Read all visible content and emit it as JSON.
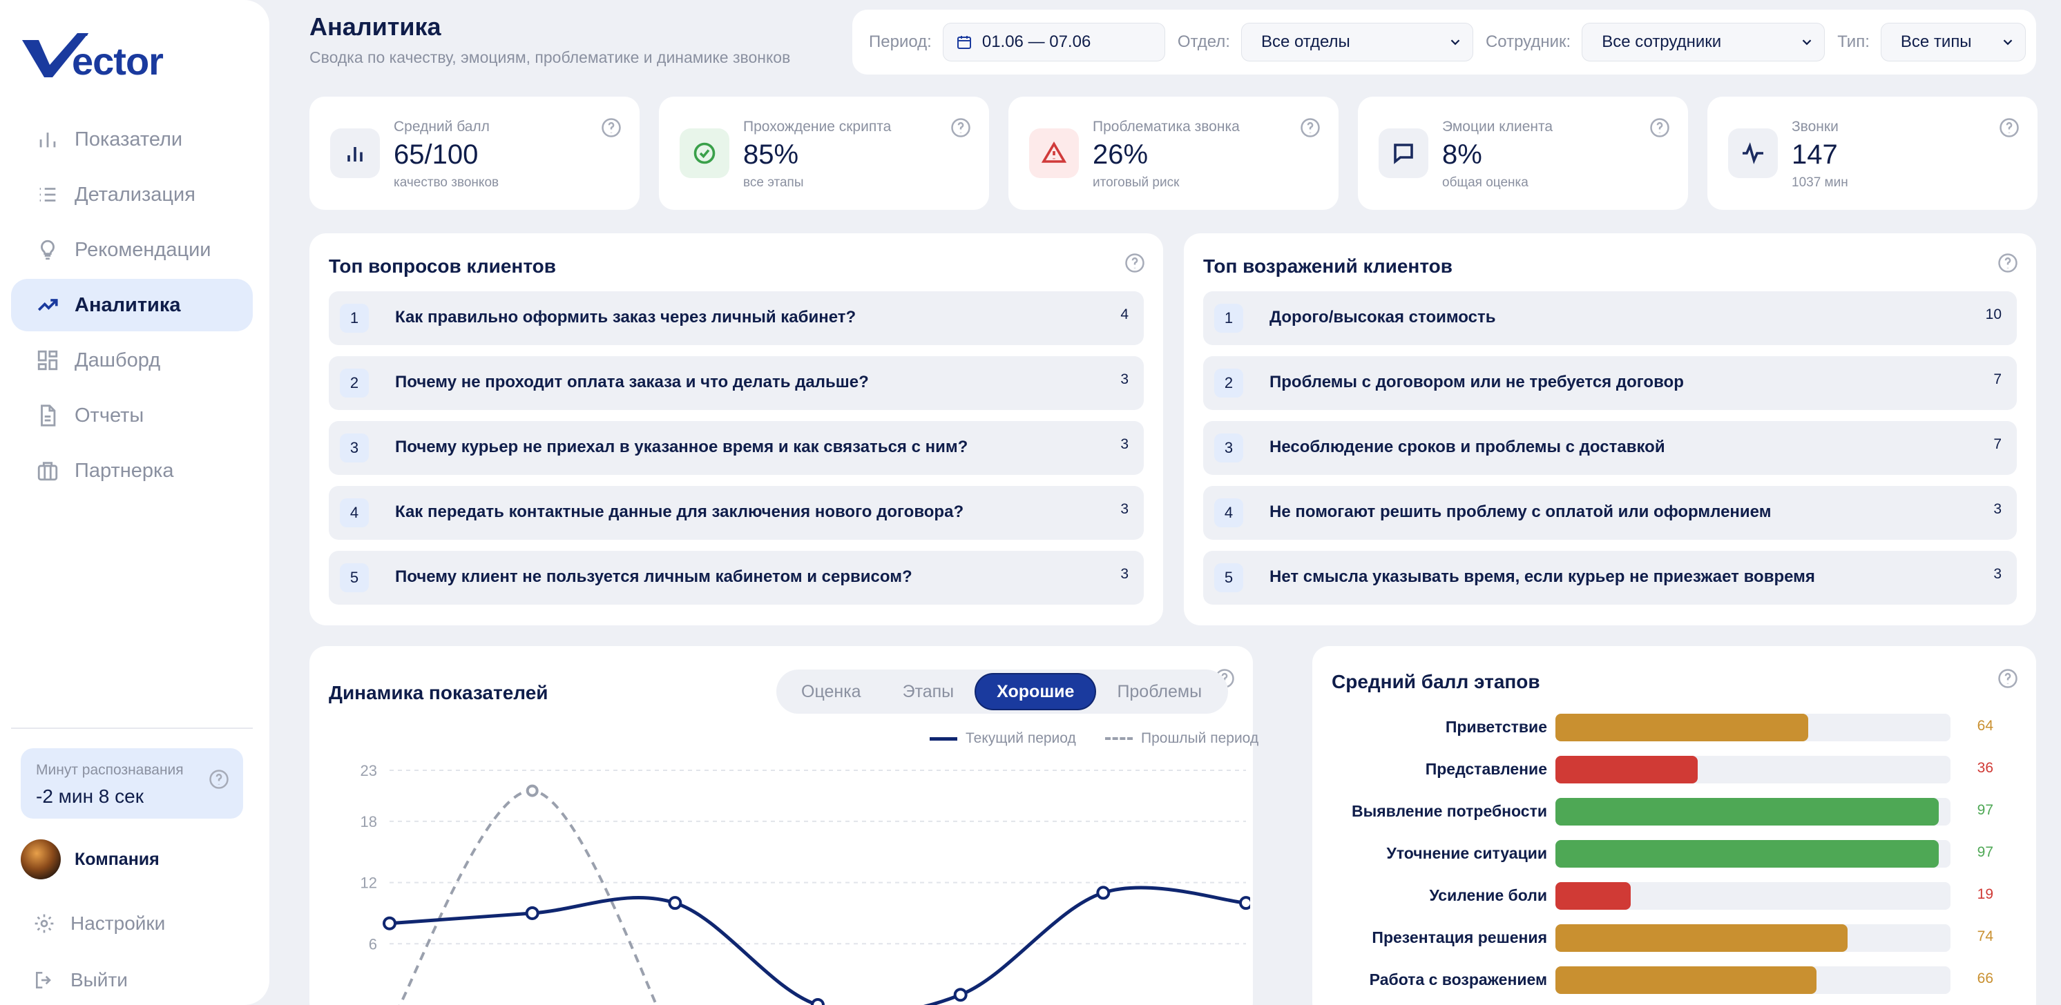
{
  "brand": {
    "logo_text": "ector",
    "accent": "#1a3a9e"
  },
  "sidebar": {
    "items": [
      {
        "label": "Показатели",
        "icon": "bar-chart-icon",
        "active": false
      },
      {
        "label": "Детализация",
        "icon": "list-icon",
        "active": false
      },
      {
        "label": "Рекомендации",
        "icon": "lightbulb-icon",
        "active": false
      },
      {
        "label": "Аналитика",
        "icon": "trending-up-icon",
        "active": true
      },
      {
        "label": "Дашборд",
        "icon": "dashboard-icon",
        "active": false
      },
      {
        "label": "Отчеты",
        "icon": "document-icon",
        "active": false
      },
      {
        "label": "Партнерка",
        "icon": "briefcase-icon",
        "active": false
      }
    ],
    "minutes": {
      "label": "Минут распознавания",
      "value": "-2 мин 8 сек"
    },
    "company": "Компания",
    "settings": "Настройки",
    "logout": "Выйти"
  },
  "header": {
    "title": "Аналитика",
    "subtitle": "Сводка по качеству, эмоциям, проблематике и динамике звонков"
  },
  "filters": {
    "period_label": "Период:",
    "period_value": "01.06 — 07.06",
    "dept_label": "Отдел:",
    "dept_value": "Все отделы",
    "employee_label": "Сотрудник:",
    "employee_value": "Все сотрудники",
    "type_label": "Тип:",
    "type_value": "Все типы"
  },
  "kpis": [
    {
      "label": "Средний балл",
      "value": "65/100",
      "sub": "качество звонков",
      "icon": "bar-chart-icon",
      "bg": "#eef0f5",
      "color": "#1a2a5e"
    },
    {
      "label": "Прохождение скрипта",
      "value": "85%",
      "sub": "все этапы",
      "icon": "check-circle-icon",
      "bg": "#e8f5ea",
      "color": "#3aa04a"
    },
    {
      "label": "Проблематика звонка",
      "value": "26%",
      "sub": "итоговый риск",
      "icon": "warning-icon",
      "bg": "#fdeaea",
      "color": "#d03a3a"
    },
    {
      "label": "Эмоции клиента",
      "value": "8%",
      "sub": "общая оценка",
      "icon": "message-icon",
      "bg": "#eef0f5",
      "color": "#1a2a5e"
    },
    {
      "label": "Звонки",
      "value": "147",
      "sub": "1037 мин",
      "icon": "activity-icon",
      "bg": "#eef0f5",
      "color": "#1a2a5e"
    }
  ],
  "questions": {
    "title": "Топ вопросов клиентов",
    "items": [
      {
        "num": "1",
        "text": "Как правильно оформить заказ через личный кабинет?",
        "count": "4"
      },
      {
        "num": "2",
        "text": "Почему не проходит оплата заказа и что делать дальше?",
        "count": "3"
      },
      {
        "num": "3",
        "text": "Почему курьер не приехал в указанное время и как связаться с ним?",
        "count": "3"
      },
      {
        "num": "4",
        "text": "Как передать контактные данные для заключения нового договора?",
        "count": "3"
      },
      {
        "num": "5",
        "text": "Почему клиент не пользуется личным кабинетом и сервисом?",
        "count": "3"
      }
    ]
  },
  "objections": {
    "title": "Топ возражений клиентов",
    "items": [
      {
        "num": "1",
        "text": "Дорого/высокая стоимость",
        "count": "10"
      },
      {
        "num": "2",
        "text": "Проблемы с договором или не требуется договор",
        "count": "7"
      },
      {
        "num": "3",
        "text": "Несоблюдение сроков и проблемы с доставкой",
        "count": "7"
      },
      {
        "num": "4",
        "text": "Не помогают решить проблему с оплатой или оформлением",
        "count": "3"
      },
      {
        "num": "5",
        "text": "Нет смысла указывать время, если курьер не приезжает вовремя",
        "count": "3"
      }
    ]
  },
  "dynamics": {
    "title": "Динамика показателей",
    "tabs": [
      {
        "label": "Оценка",
        "active": false
      },
      {
        "label": "Этапы",
        "active": false
      },
      {
        "label": "Хорошие",
        "active": true
      },
      {
        "label": "Проблемы",
        "active": false
      }
    ],
    "legend_current": "Текущий период",
    "legend_previous": "Прошлый период"
  },
  "chart_data": {
    "type": "line",
    "title": "Динамика показателей",
    "y_ticks": [
      "23",
      "18",
      "12",
      "6"
    ],
    "y_tick_values": [
      23,
      18,
      12,
      6
    ],
    "ylim": [
      0,
      23
    ],
    "grid": true,
    "legend_position": "top-right",
    "series": [
      {
        "name": "Текущий период",
        "style": "solid",
        "color": "#0f2670",
        "values": [
          8,
          9,
          10,
          0,
          1,
          11,
          10
        ]
      },
      {
        "name": "Прошлый период",
        "style": "dashed",
        "color": "#9aa0ad",
        "values": [
          -2,
          21,
          -4,
          null,
          null,
          null,
          null
        ]
      }
    ]
  },
  "stages": {
    "title": "Средний балл этапов",
    "items": [
      {
        "label": "Приветствие",
        "value": 64,
        "display": "64",
        "color": "#c99030"
      },
      {
        "label": "Представление",
        "value": 36,
        "display": "36",
        "color": "#d03a35"
      },
      {
        "label": "Выявление потребности",
        "value": 97,
        "display": "97",
        "color": "#4ea855"
      },
      {
        "label": "Уточнение ситуации",
        "value": 97,
        "display": "97",
        "color": "#4ea855"
      },
      {
        "label": "Усиление боли",
        "value": 19,
        "display": "19",
        "color": "#d03a35"
      },
      {
        "label": "Презентация решения",
        "value": 74,
        "display": "74",
        "color": "#c99030"
      },
      {
        "label": "Работа с возражением",
        "value": 66,
        "display": "66",
        "color": "#c99030"
      }
    ]
  }
}
